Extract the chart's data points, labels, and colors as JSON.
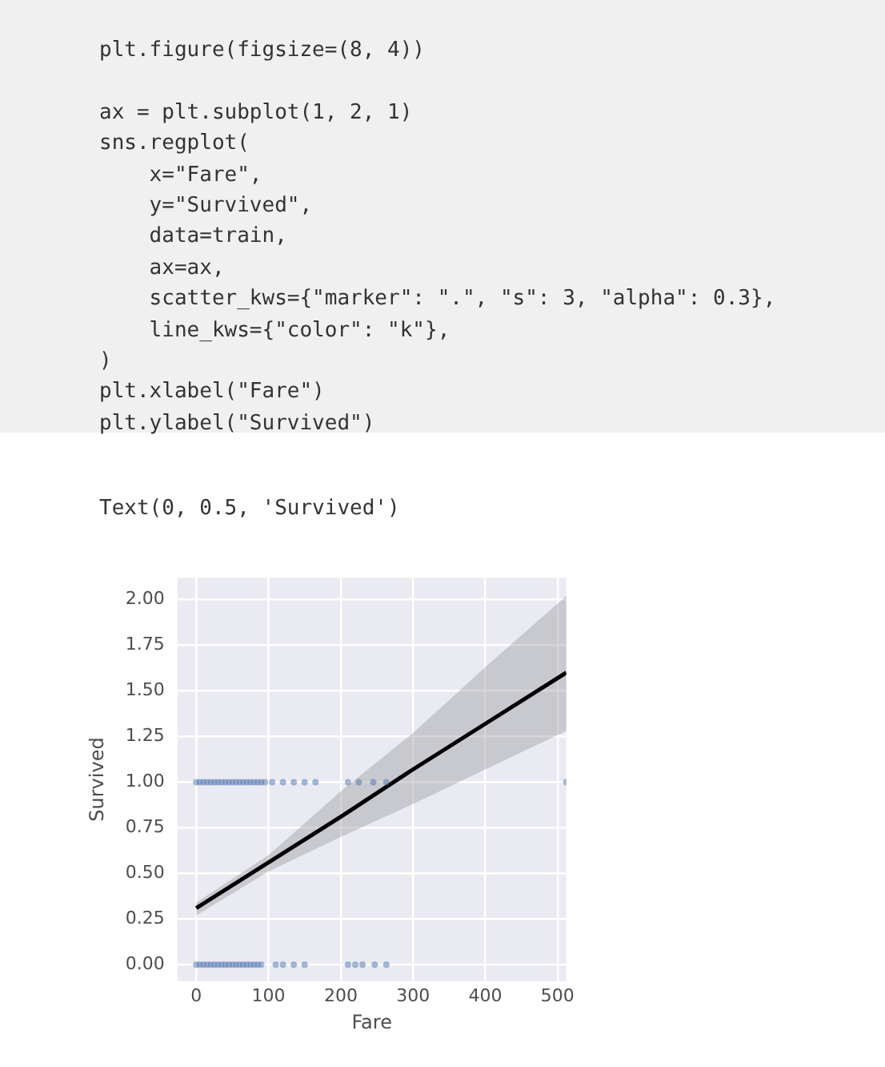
{
  "chart_data": {
    "type": "scatter",
    "xlabel": "Fare",
    "ylabel": "Survived",
    "annotations": [
      "plt.figure(figsize=(8, 4))",
      "ax = plt.subplot(1, 2, 1)",
      "sns.regplot(",
      "    x=\"Fare\",",
      "    y=\"Survived\",",
      "    data=train,",
      "    ax=ax,",
      "    scatter_kws={\"marker\": \".\", \"s\": 3, \"alpha\": 0.3},",
      "    line_kws={\"color\": \"k\"},",
      ")",
      "plt.xlabel(\"Fare\")",
      "plt.ylabel(\"Survived\")",
      "Text(0, 0.5, 'Survived')"
    ],
    "series": [
      {
        "color": "#4c72b0",
        "marker": "circle",
        "x": [
          0,
          5,
          10,
          15,
          20,
          25,
          30,
          35,
          40,
          45,
          50,
          55,
          60,
          65,
          70,
          75,
          80,
          85,
          90,
          95,
          105,
          120,
          135,
          150,
          165,
          210,
          225,
          245,
          263,
          512
        ],
        "values": [
          1,
          1,
          1,
          1,
          1,
          1,
          1,
          1,
          1,
          1,
          1,
          1,
          1,
          1,
          1,
          1,
          1,
          1,
          1,
          1,
          1,
          1,
          1,
          1,
          1,
          1,
          1,
          1,
          1,
          1
        ]
      },
      {
        "color": "#4c72b0",
        "marker": "circle",
        "x": [
          0,
          5,
          10,
          15,
          20,
          25,
          30,
          35,
          40,
          45,
          50,
          55,
          60,
          65,
          70,
          75,
          80,
          85,
          90,
          110,
          120,
          135,
          150,
          210,
          220,
          230,
          247,
          263
        ],
        "values": [
          0,
          0,
          0,
          0,
          0,
          0,
          0,
          0,
          0,
          0,
          0,
          0,
          0,
          0,
          0,
          0,
          0,
          0,
          0,
          0,
          0,
          0,
          0,
          0,
          0,
          0,
          0,
          0
        ]
      },
      {
        "type": "line",
        "color": "#000000",
        "x": [
          0,
          100,
          200,
          300,
          400,
          512
        ],
        "values": [
          0.31,
          0.56,
          0.81,
          1.07,
          1.32,
          1.6
        ],
        "lower": [
          0.27,
          0.51,
          0.7,
          0.88,
          1.07,
          1.28
        ],
        "upper": [
          0.34,
          0.6,
          0.95,
          1.27,
          1.63,
          2.02
        ]
      }
    ],
    "xlim": [
      -26,
      512
    ],
    "xticks": [
      0,
      100,
      200,
      300,
      400,
      500
    ],
    "ylim": [
      -0.09,
      2.12
    ],
    "yticks": [
      {
        "value": 0,
        "label": "0.00"
      },
      {
        "value": 0.25,
        "label": "0.25"
      },
      {
        "value": 0.5,
        "label": "0.50"
      },
      {
        "value": 0.75,
        "label": "0.75"
      },
      {
        "value": 1,
        "label": "1.00"
      },
      {
        "value": 1.25,
        "label": "1.25"
      },
      {
        "value": 1.5,
        "label": "1.50"
      },
      {
        "value": 1.75,
        "label": "1.75"
      },
      {
        "value": 2,
        "label": "2.00"
      }
    ],
    "grid": true
  }
}
